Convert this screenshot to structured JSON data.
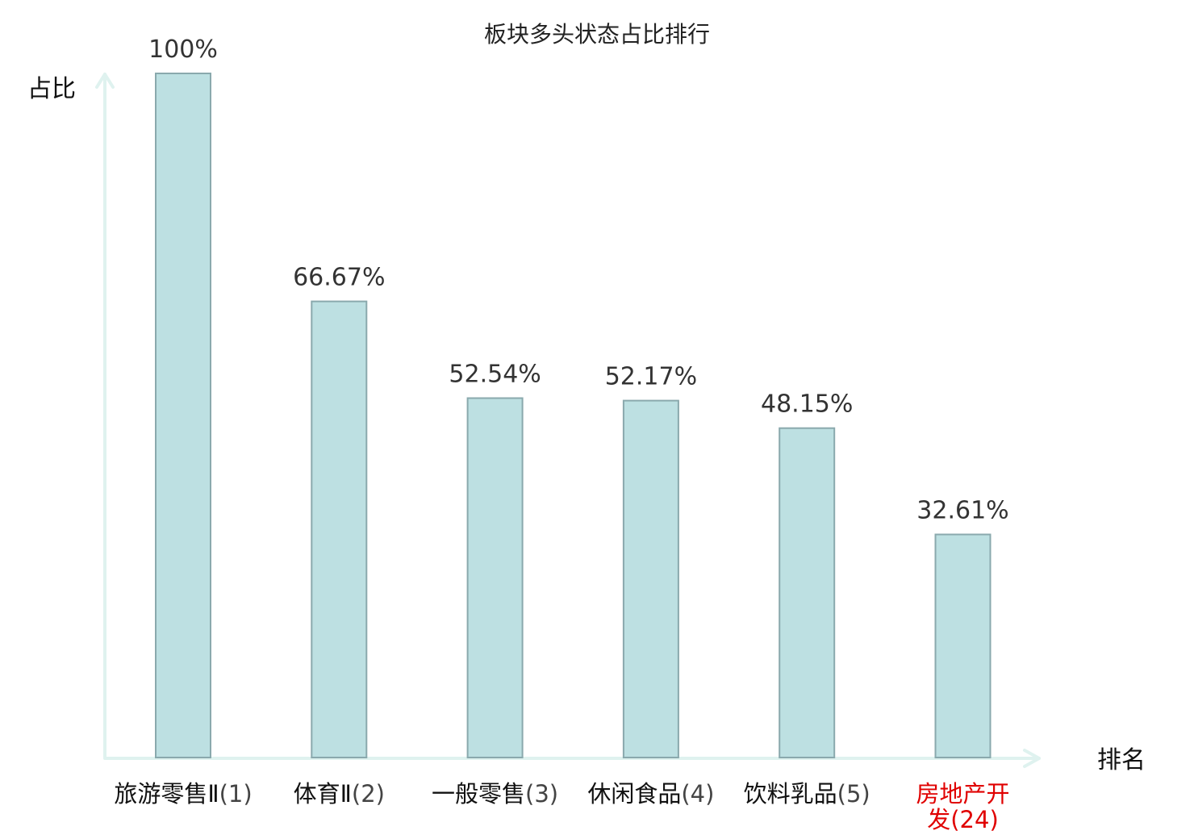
{
  "chart_data": {
    "type": "bar",
    "title": "板块多头状态占比排行",
    "ylabel": "占比",
    "xlabel": "排名",
    "ylim": [
      0,
      100
    ],
    "grid": false,
    "legend": "none",
    "categories": [
      {
        "name": "旅游零售Ⅱ",
        "rank": "(1)",
        "value": 100,
        "label": "100%",
        "highlight": false
      },
      {
        "name": "体育Ⅱ",
        "rank": "(2)",
        "value": 66.67,
        "label": "66.67%",
        "highlight": false
      },
      {
        "name": "一般零售",
        "rank": "(3)",
        "value": 52.54,
        "label": "52.54%",
        "highlight": false
      },
      {
        "name": "休闲食品",
        "rank": "(4)",
        "value": 52.17,
        "label": "52.17%",
        "highlight": false
      },
      {
        "name": "饮料乳品",
        "rank": "(5)",
        "value": 48.15,
        "label": "48.15%",
        "highlight": false
      },
      {
        "name": "房地产开发",
        "rank": "(24)",
        "value": 32.61,
        "label": "32.61%",
        "highlight": true
      }
    ],
    "colors": {
      "bar_fill": "#bde0e2",
      "bar_stroke": "#8aa9ad",
      "axis": "#dff2ef",
      "label_default": "#111111",
      "rank_default": "#444444",
      "label_highlight": "#e00000"
    }
  }
}
